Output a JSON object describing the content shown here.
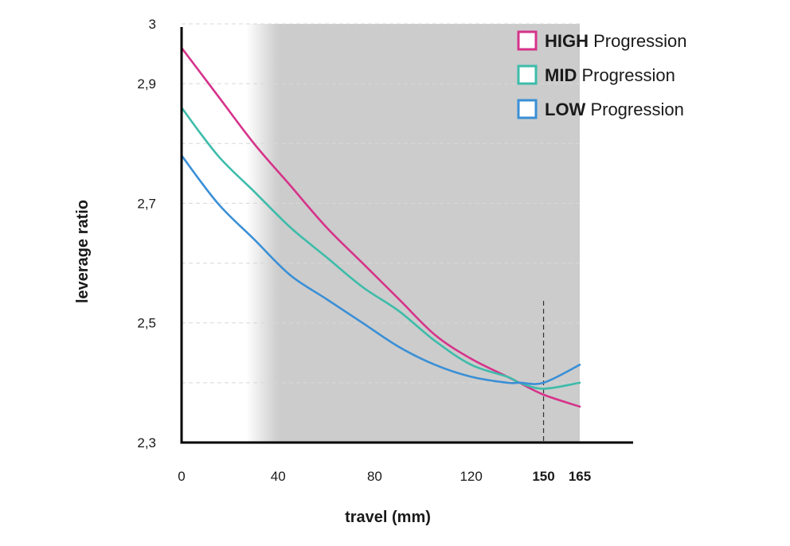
{
  "chart_data": {
    "type": "line",
    "title": "",
    "xlabel": "travel (mm)",
    "ylabel": "leverage ratio",
    "xlim": [
      0,
      165
    ],
    "ylim": [
      2.3,
      3.0
    ],
    "x_ticks": [
      {
        "value": 0,
        "label": "0",
        "bold": false
      },
      {
        "value": 40,
        "label": "40",
        "bold": false
      },
      {
        "value": 80,
        "label": "80",
        "bold": false
      },
      {
        "value": 120,
        "label": "120",
        "bold": false
      },
      {
        "value": 150,
        "label": "150",
        "bold": true
      },
      {
        "value": 165,
        "label": "165",
        "bold": true
      }
    ],
    "y_ticks": [
      {
        "value": 2.3,
        "label": "2,3"
      },
      {
        "value": 2.5,
        "label": "2,5"
      },
      {
        "value": 2.7,
        "label": "2,7"
      },
      {
        "value": 2.9,
        "label": "2,9"
      },
      {
        "value": 3.0,
        "label": "3"
      }
    ],
    "gridlines": [
      2.4,
      2.5,
      2.6,
      2.7,
      2.8,
      2.9,
      3.0
    ],
    "grid": true,
    "shaded_region": {
      "x_from": 40,
      "x_to": 165
    },
    "reference_line": {
      "x": 150,
      "style": "dashed"
    },
    "legend_position": "top-right",
    "x": [
      0,
      15,
      30,
      45,
      60,
      75,
      90,
      105,
      120,
      135,
      140,
      150,
      165
    ],
    "series": [
      {
        "name_bold": "HIGH",
        "name_rest": " Progression",
        "color": "#d6338a",
        "values": [
          2.96,
          2.88,
          2.8,
          2.73,
          2.66,
          2.6,
          2.54,
          2.48,
          2.44,
          2.41,
          2.4,
          2.38,
          2.36
        ]
      },
      {
        "name_bold": "MID",
        "name_rest": " Progression",
        "color": "#3dbcaa",
        "values": [
          2.86,
          2.78,
          2.72,
          2.66,
          2.61,
          2.56,
          2.52,
          2.47,
          2.43,
          2.41,
          2.4,
          2.39,
          2.4
        ]
      },
      {
        "name_bold": "LOW",
        "name_rest": " Progression",
        "color": "#3a8fd6",
        "values": [
          2.78,
          2.7,
          2.64,
          2.58,
          2.54,
          2.5,
          2.46,
          2.43,
          2.41,
          2.4,
          2.4,
          2.4,
          2.43
        ]
      }
    ]
  }
}
